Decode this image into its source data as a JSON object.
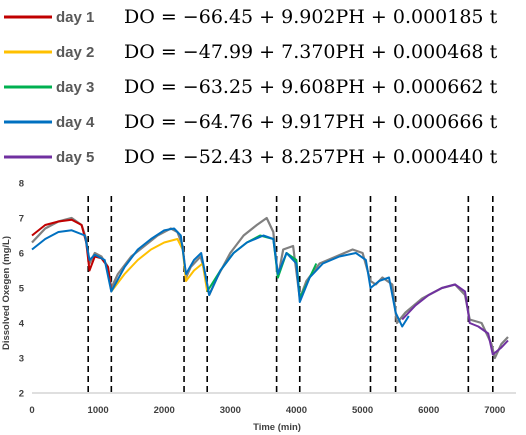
{
  "legend": [
    {
      "label": "day 1",
      "color": "#c00000",
      "equation": "DO = −66.45 + 9.902PH + 0.000185 t"
    },
    {
      "label": "day 2",
      "color": "#ffc000",
      "equation": "DO = −47.99 + 7.370PH + 0.000468 t"
    },
    {
      "label": "day 3",
      "color": "#00b050",
      "equation": "DO = −63.25 + 9.608PH + 0.000662 t"
    },
    {
      "label": "day 4",
      "color": "#0070c0",
      "equation": "DO = −64.76 + 9.917PH + 0.000666 t"
    },
    {
      "label": "day 5",
      "color": "#7030a0",
      "equation": "DO = −52.43 + 8.257PH + 0.000440 t"
    }
  ],
  "chart_data": {
    "type": "line",
    "xlabel": "Time (min)",
    "ylabel": "Dissolved Oxegen (mg/L)",
    "xlim": [
      0,
      7200
    ],
    "ylim": [
      2,
      8
    ],
    "xticks": [
      0,
      1000,
      2000,
      3000,
      4000,
      5000,
      6000,
      7000
    ],
    "yticks": [
      2,
      3,
      4,
      5,
      6,
      7,
      8
    ],
    "grid": false,
    "dashed_lines_x": [
      850,
      1200,
      2300,
      2650,
      3700,
      4050,
      5120,
      5500,
      6600,
      6970
    ],
    "measured": {
      "color": "#808080",
      "points": [
        [
          0,
          6.3
        ],
        [
          200,
          6.7
        ],
        [
          400,
          6.9
        ],
        [
          600,
          7.0
        ],
        [
          750,
          6.8
        ],
        [
          820,
          6.4
        ],
        [
          870,
          5.7
        ],
        [
          950,
          6.0
        ],
        [
          1050,
          5.9
        ],
        [
          1150,
          5.6
        ],
        [
          1200,
          5.0
        ],
        [
          1300,
          5.4
        ],
        [
          1500,
          5.9
        ],
        [
          1700,
          6.2
        ],
        [
          1900,
          6.5
        ],
        [
          2100,
          6.7
        ],
        [
          2200,
          6.6
        ],
        [
          2280,
          6.2
        ],
        [
          2330,
          5.3
        ],
        [
          2400,
          5.6
        ],
        [
          2550,
          5.9
        ],
        [
          2620,
          5.4
        ],
        [
          2680,
          4.8
        ],
        [
          2800,
          5.3
        ],
        [
          3000,
          6.0
        ],
        [
          3200,
          6.5
        ],
        [
          3400,
          6.8
        ],
        [
          3550,
          7.0
        ],
        [
          3650,
          6.6
        ],
        [
          3720,
          5.3
        ],
        [
          3800,
          6.1
        ],
        [
          3950,
          6.2
        ],
        [
          4050,
          4.7
        ],
        [
          4150,
          5.2
        ],
        [
          4350,
          5.7
        ],
        [
          4600,
          5.9
        ],
        [
          4850,
          6.1
        ],
        [
          5000,
          6.0
        ],
        [
          5120,
          5.2
        ],
        [
          5200,
          5.1
        ],
        [
          5300,
          5.3
        ],
        [
          5450,
          5.1
        ],
        [
          5520,
          4.0
        ],
        [
          5650,
          4.3
        ],
        [
          5900,
          4.7
        ],
        [
          6200,
          5.0
        ],
        [
          6400,
          5.1
        ],
        [
          6550,
          4.8
        ],
        [
          6620,
          4.1
        ],
        [
          6800,
          4.0
        ],
        [
          6950,
          3.4
        ],
        [
          7000,
          3.0
        ],
        [
          7100,
          3.4
        ],
        [
          7200,
          3.6
        ]
      ]
    },
    "series": [
      {
        "name": "day 1",
        "color": "#c00000",
        "points": [
          [
            0,
            6.5
          ],
          [
            200,
            6.8
          ],
          [
            400,
            6.9
          ],
          [
            600,
            6.95
          ],
          [
            750,
            6.8
          ],
          [
            820,
            6.3
          ],
          [
            870,
            5.5
          ],
          [
            950,
            5.9
          ],
          [
            1050,
            5.85
          ],
          [
            1150,
            5.6
          ],
          [
            1200,
            4.9
          ]
        ]
      },
      {
        "name": "day 2",
        "color": "#ffc000",
        "points": [
          [
            1200,
            4.9
          ],
          [
            1400,
            5.4
          ],
          [
            1600,
            5.8
          ],
          [
            1800,
            6.1
          ],
          [
            2000,
            6.3
          ],
          [
            2200,
            6.4
          ],
          [
            2280,
            6.1
          ],
          [
            2330,
            5.2
          ],
          [
            2450,
            5.5
          ],
          [
            2580,
            5.7
          ],
          [
            2650,
            4.9
          ]
        ]
      },
      {
        "name": "day 3",
        "color": "#00b050",
        "points": [
          [
            2650,
            4.9
          ],
          [
            2850,
            5.5
          ],
          [
            3050,
            6.0
          ],
          [
            3250,
            6.3
          ],
          [
            3450,
            6.5
          ],
          [
            3650,
            6.4
          ],
          [
            3720,
            5.3
          ],
          [
            3850,
            6.0
          ],
          [
            4000,
            5.8
          ],
          [
            4050,
            4.7
          ],
          [
            4150,
            5.1
          ],
          [
            4300,
            5.7
          ]
        ]
      },
      {
        "name": "day 4",
        "color": "#0070c0",
        "points": [
          [
            0,
            6.1
          ],
          [
            200,
            6.4
          ],
          [
            400,
            6.6
          ],
          [
            600,
            6.65
          ],
          [
            800,
            6.5
          ],
          [
            870,
            5.8
          ],
          [
            950,
            5.95
          ],
          [
            1100,
            5.8
          ],
          [
            1200,
            4.9
          ],
          [
            1400,
            5.6
          ],
          [
            1600,
            6.1
          ],
          [
            1800,
            6.4
          ],
          [
            2000,
            6.65
          ],
          [
            2150,
            6.7
          ],
          [
            2250,
            6.5
          ],
          [
            2330,
            5.4
          ],
          [
            2450,
            5.8
          ],
          [
            2560,
            6.0
          ],
          [
            2680,
            4.8
          ],
          [
            2850,
            5.5
          ],
          [
            3050,
            6.0
          ],
          [
            3250,
            6.3
          ],
          [
            3500,
            6.5
          ],
          [
            3650,
            6.4
          ],
          [
            3720,
            5.4
          ],
          [
            3850,
            6.0
          ],
          [
            4000,
            5.7
          ],
          [
            4050,
            4.6
          ],
          [
            4200,
            5.3
          ],
          [
            4400,
            5.7
          ],
          [
            4650,
            5.9
          ],
          [
            4900,
            6.0
          ],
          [
            5050,
            5.8
          ],
          [
            5120,
            5.0
          ],
          [
            5250,
            5.2
          ],
          [
            5400,
            5.3
          ],
          [
            5500,
            4.3
          ],
          [
            5600,
            3.9
          ],
          [
            5700,
            4.2
          ]
        ]
      },
      {
        "name": "day 5",
        "color": "#7030a0",
        "points": [
          [
            5600,
            4.1
          ],
          [
            5800,
            4.5
          ],
          [
            6000,
            4.8
          ],
          [
            6200,
            5.0
          ],
          [
            6400,
            5.1
          ],
          [
            6550,
            4.9
          ],
          [
            6620,
            4.0
          ],
          [
            6750,
            3.9
          ],
          [
            6900,
            3.7
          ],
          [
            6970,
            3.1
          ],
          [
            7100,
            3.3
          ],
          [
            7200,
            3.5
          ]
        ]
      }
    ]
  }
}
